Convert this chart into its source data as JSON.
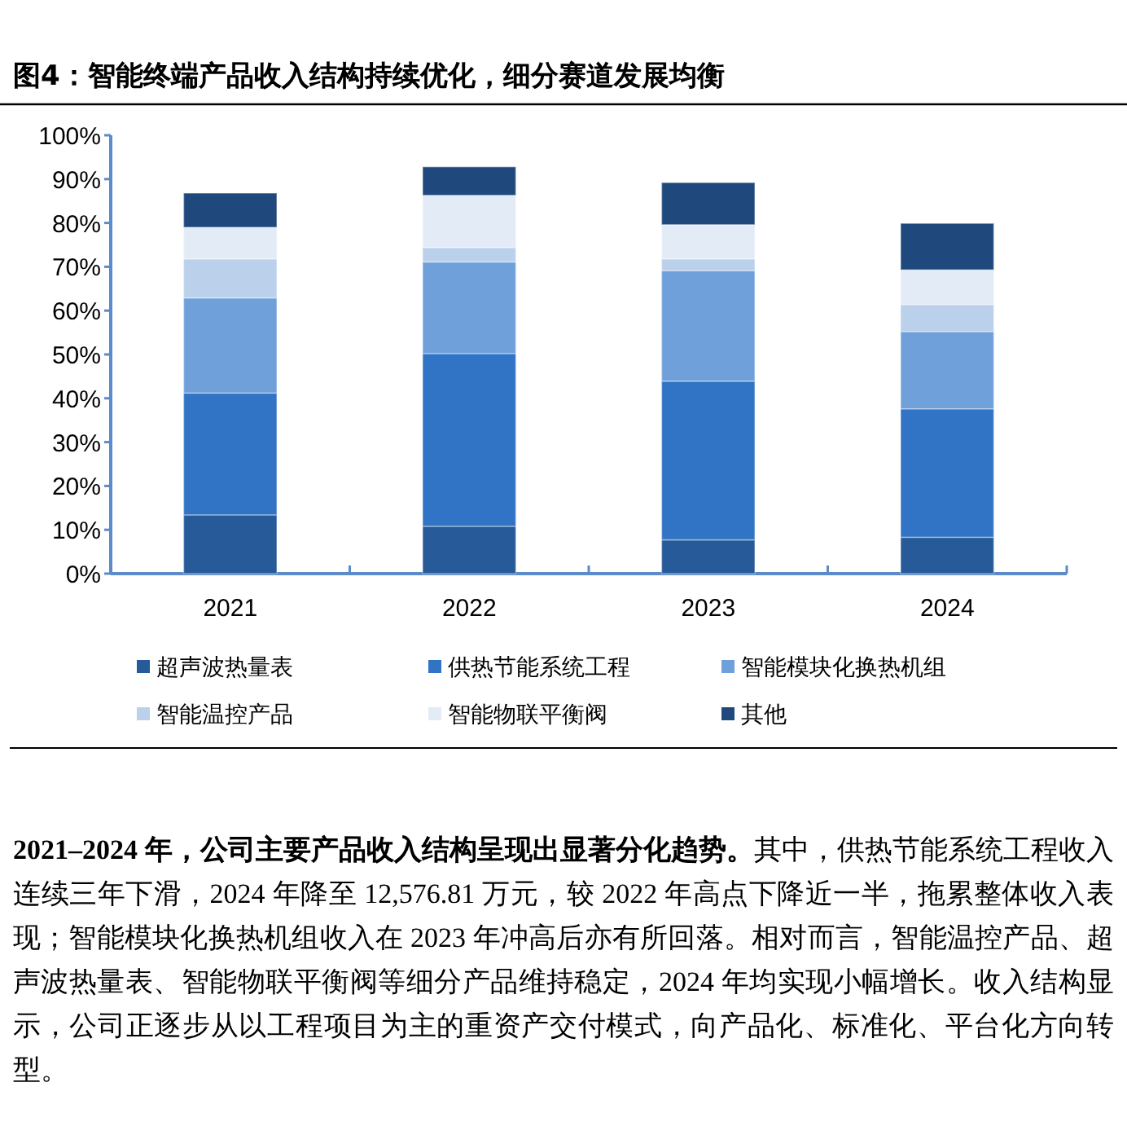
{
  "chart_data": {
    "type": "bar",
    "stacked": true,
    "title": "图4：智能终端产品收入结构持续优化，细分赛道发展均衡",
    "categories": [
      "2021",
      "2022",
      "2023",
      "2024"
    ],
    "series": [
      {
        "name": "超声波热量表",
        "color": "#265a98",
        "values": [
          13.4,
          10.8,
          7.7,
          8.3
        ]
      },
      {
        "name": "供热节能系统工程",
        "color": "#3173c4",
        "values": [
          27.8,
          39.4,
          36.2,
          29.3
        ]
      },
      {
        "name": "智能模块化换热机组",
        "color": "#6fa0da",
        "values": [
          21.7,
          20.9,
          25.2,
          17.6
        ]
      },
      {
        "name": "智能温控产品",
        "color": "#bad0eb",
        "values": [
          8.9,
          3.3,
          2.7,
          6.2
        ]
      },
      {
        "name": "智能物联平衡阀",
        "color": "#e2ebf6",
        "values": [
          7.2,
          11.9,
          7.8,
          7.9
        ]
      },
      {
        "name": "其他",
        "color": "#1f497d",
        "values": [
          7.8,
          6.5,
          9.6,
          10.6
        ]
      }
    ],
    "ylim": [
      0,
      100
    ],
    "yticks": [
      {
        "value": 0,
        "label": "0%"
      },
      {
        "value": 10,
        "label": "10%"
      },
      {
        "value": 20,
        "label": "20%"
      },
      {
        "value": 30,
        "label": "30%"
      },
      {
        "value": 40,
        "label": "40%"
      },
      {
        "value": 50,
        "label": "50%"
      },
      {
        "value": 60,
        "label": "60%"
      },
      {
        "value": 70,
        "label": "70%"
      },
      {
        "value": 80,
        "label": "80%"
      },
      {
        "value": 90,
        "label": "90%"
      },
      {
        "value": 100,
        "label": "100%"
      }
    ],
    "legend": "bottom",
    "annotations": [
      "**2021–2024 年，公司主要产品收入结构呈现出显著分化趋势。**其中，供热节能系统工程收入连续三年下滑，2024 年降至 12,576.81 万元，较 2022 年高点下降近一半，拖累整体收入表现；智能模块化换热机组收入在 2023 年冲高后亦有所回落。相对而言，智能温控产品、超声波热量表、智能物联平衡阀等细分产品维持稳定，2024 年均实现小幅增长。收入结构显示，公司正逐步从以工程项目为主的重资产交付模式，向产品化、标准化、平台化方向转型。"
    ]
  }
}
